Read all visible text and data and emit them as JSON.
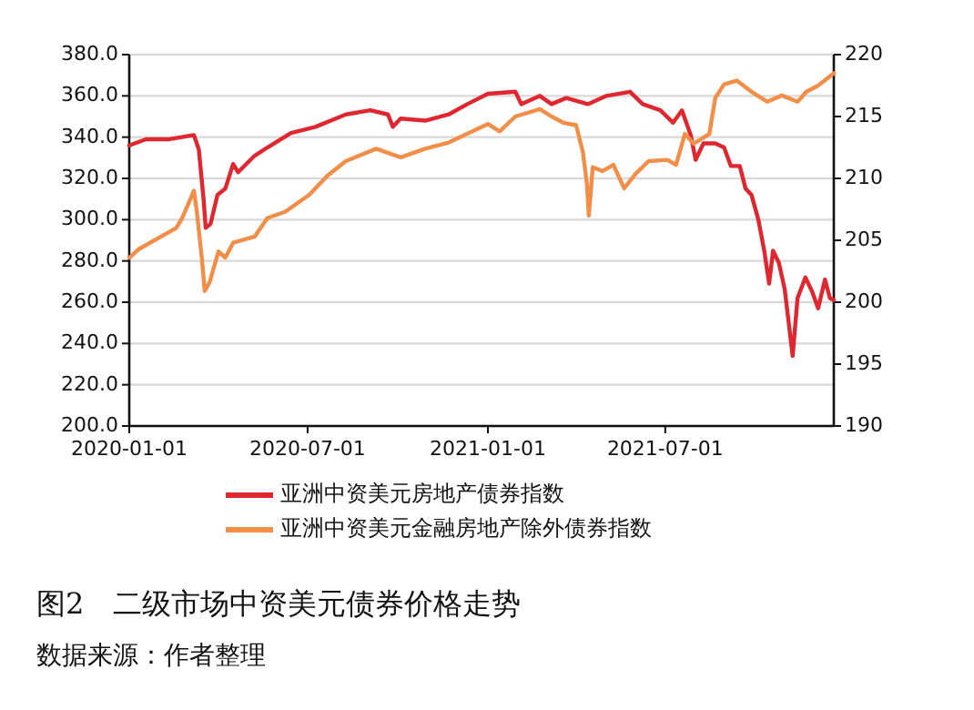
{
  "chart_data": {
    "type": "line",
    "title": "图2　二级市场中资美元债券价格走势",
    "annotations": [
      "数据来源：作者整理"
    ],
    "xlim": [
      "2020-01-01",
      "2021-12-20"
    ],
    "xticks": [
      "2020-01-01",
      "2020-07-01",
      "2021-01-01",
      "2021-07-01"
    ],
    "ylim": [
      200,
      380
    ],
    "yticks": [
      {
        "value": 200,
        "label": "200.0"
      },
      {
        "value": 220,
        "label": "220.0"
      },
      {
        "value": 240,
        "label": "240.0"
      },
      {
        "value": 260,
        "label": "260.0"
      },
      {
        "value": 280,
        "label": "280.0"
      },
      {
        "value": 300,
        "label": "300.0"
      },
      {
        "value": 320,
        "label": "320.0"
      },
      {
        "value": 340,
        "label": "340.0"
      },
      {
        "value": 360,
        "label": "360.0"
      },
      {
        "value": 380,
        "label": "380.0"
      }
    ],
    "y2lim": [
      190,
      220
    ],
    "y2ticks": [
      190,
      195,
      200,
      205,
      210,
      215,
      220
    ],
    "grid": "y",
    "legend": "bottom",
    "marker": "none",
    "line_style": "solid",
    "series": [
      {
        "name": "亚洲中资美元房地产债券指数",
        "color": "#e0262f",
        "x": [
          "2020-01-01",
          "2020-01-18",
          "2020-02-11",
          "2020-03-07",
          "2020-03-12",
          "2020-03-17",
          "2020-03-19",
          "2020-03-24",
          "2020-03-31",
          "2020-04-08",
          "2020-04-16",
          "2020-04-21",
          "2020-05-08",
          "2020-05-21",
          "2020-06-14",
          "2020-07-09",
          "2020-08-09",
          "2020-09-03",
          "2020-09-21",
          "2020-09-26",
          "2020-10-04",
          "2020-10-29",
          "2020-11-22",
          "2020-12-11",
          "2021-01-01",
          "2021-01-29",
          "2021-02-04",
          "2021-02-23",
          "2021-03-07",
          "2021-03-22",
          "2021-04-13",
          "2021-05-02",
          "2021-05-26",
          "2021-06-08",
          "2021-06-26",
          "2021-07-09",
          "2021-07-18",
          "2021-07-27",
          "2021-08-01",
          "2021-08-09",
          "2021-08-21",
          "2021-08-30",
          "2021-09-06",
          "2021-09-15",
          "2021-09-21",
          "2021-09-27",
          "2021-10-04",
          "2021-10-10",
          "2021-10-15",
          "2021-10-19",
          "2021-10-25",
          "2021-10-31",
          "2021-11-08",
          "2021-11-13",
          "2021-11-21",
          "2021-11-28",
          "2021-12-04",
          "2021-12-11",
          "2021-12-16",
          "2021-12-20"
        ],
        "values": [
          336,
          339,
          339,
          341,
          334,
          309,
          296,
          298,
          312,
          315,
          327,
          323,
          331,
          335,
          342,
          345,
          351,
          353,
          351,
          345,
          349,
          348,
          351,
          356,
          361,
          362,
          356,
          360,
          356,
          359,
          356,
          360,
          362,
          356,
          353,
          347,
          353,
          341,
          329,
          337,
          337,
          335,
          326,
          326,
          315,
          312,
          300,
          285,
          269,
          285,
          279,
          266,
          234,
          262,
          272,
          265,
          257,
          271,
          262,
          261
        ]
      },
      {
        "name": "亚洲中资美元金融房地产除外债券指数",
        "color": "#f28e48",
        "axis": "y2",
        "x": [
          "2020-01-01",
          "2020-01-11",
          "2020-02-18",
          "2020-02-24",
          "2020-03-07",
          "2020-03-10",
          "2020-03-15",
          "2020-03-18",
          "2020-03-23",
          "2020-04-01",
          "2020-04-08",
          "2020-04-16",
          "2020-05-08",
          "2020-05-21",
          "2020-06-08",
          "2020-07-03",
          "2020-07-21",
          "2020-08-09",
          "2020-09-09",
          "2020-10-04",
          "2020-10-29",
          "2020-11-22",
          "2021-01-01",
          "2021-01-13",
          "2021-01-29",
          "2021-02-23",
          "2021-03-07",
          "2021-03-19",
          "2021-04-01",
          "2021-04-08",
          "2021-04-12",
          "2021-04-14",
          "2021-04-18",
          "2021-04-28",
          "2021-05-09",
          "2021-05-20",
          "2021-06-01",
          "2021-06-14",
          "2021-07-03",
          "2021-07-12",
          "2021-07-21",
          "2021-07-30",
          "2021-08-15",
          "2021-08-21",
          "2021-08-30",
          "2021-09-12",
          "2021-09-27",
          "2021-10-13",
          "2021-10-28",
          "2021-11-13",
          "2021-11-22",
          "2021-12-04",
          "2021-12-20"
        ],
        "values": [
          203.6,
          204.3,
          206,
          206.8,
          209,
          207.3,
          203.6,
          200.9,
          201.6,
          204.1,
          203.6,
          204.8,
          205.3,
          206.8,
          207.3,
          208.7,
          210.2,
          211.4,
          212.4,
          211.7,
          212.4,
          212.9,
          214.4,
          213.8,
          215,
          215.6,
          215,
          214.5,
          214.3,
          212.1,
          209.6,
          207,
          210.9,
          210.6,
          211.1,
          209.2,
          210.4,
          211.4,
          211.5,
          211.1,
          213.6,
          212.8,
          213.6,
          216.5,
          217.6,
          217.9,
          217,
          216.2,
          216.7,
          216.2,
          217,
          217.5,
          218.5
        ]
      }
    ]
  }
}
